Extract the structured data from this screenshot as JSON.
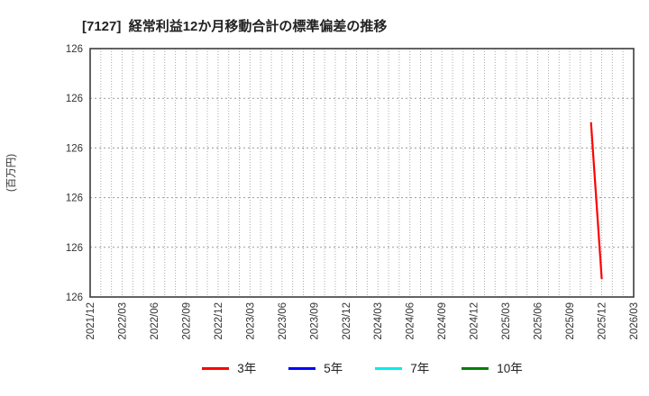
{
  "title": "[7127]  経常利益12か月移動合計の標準偏差の推移",
  "chart_data": {
    "type": "line",
    "title": "[7127]  経常利益12か月移動合計の標準偏差の推移",
    "xlabel": "",
    "ylabel": "(百万円)",
    "x_start": "2021/12",
    "x_end": "2026/03",
    "x_tick_labels": [
      "2021/12",
      "2022/03",
      "2022/06",
      "2022/09",
      "2022/12",
      "2023/03",
      "2023/06",
      "2023/09",
      "2023/12",
      "2024/03",
      "2024/06",
      "2024/09",
      "2024/12",
      "2025/03",
      "2025/06",
      "2025/09",
      "2025/12",
      "2026/03"
    ],
    "y_tick_labels": [
      "126",
      "126",
      "126",
      "126",
      "126",
      "126"
    ],
    "ylim": [
      125.8,
      126.2
    ],
    "grid": true,
    "legend_position": "bottom",
    "series": [
      {
        "name": "3年",
        "color": "#ff0000",
        "points": [
          {
            "x": "2025/11",
            "y": 126.08
          },
          {
            "x": "2025/12",
            "y": 125.83
          }
        ]
      },
      {
        "name": "5年",
        "color": "#0000ff",
        "points": []
      },
      {
        "name": "7年",
        "color": "#00eeee",
        "points": []
      },
      {
        "name": "10年",
        "color": "#008000",
        "points": []
      }
    ],
    "colors": {
      "plot_border": "#3c3c3c",
      "gridline": "#aaaaaa",
      "tick_text": "#333333"
    }
  }
}
